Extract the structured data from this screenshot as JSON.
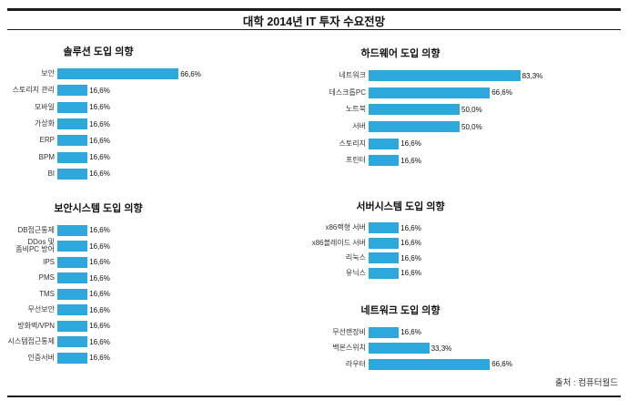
{
  "page": {
    "title": "대학 2014년 IT 투자 수요전망",
    "source": "출처 : 컴퓨터월드",
    "bar_color": "#2ca8dc",
    "unit": "%"
  },
  "chart_data": [
    {
      "type": "bar",
      "orientation": "horizontal",
      "title": "솔루션 도입 의향",
      "categories": [
        "보안",
        "스토리지 관리",
        "모바일",
        "가상화",
        "ERP",
        "BPM",
        "BI"
      ],
      "values": [
        66.6,
        16.6,
        16.6,
        16.6,
        16.6,
        16.6,
        16.6
      ],
      "value_labels": [
        "66,6%",
        "16,6%",
        "16,6%",
        "16,6%",
        "16,6%",
        "16,6%",
        "16,6%"
      ],
      "xlim": [
        0,
        100
      ],
      "grid": false,
      "legend": false
    },
    {
      "type": "bar",
      "orientation": "horizontal",
      "title": "하드웨어 도입 의향",
      "categories": [
        "네트워크",
        "데스크톱PC",
        "노트북",
        "서버",
        "스토리지",
        "프린터"
      ],
      "values": [
        83.3,
        66.6,
        50.0,
        50.0,
        16.6,
        16.6
      ],
      "value_labels": [
        "83,3%",
        "66,6%",
        "50,0%",
        "50,0%",
        "16,6%",
        "16,6%"
      ],
      "xlim": [
        0,
        100
      ],
      "grid": false,
      "legend": false
    },
    {
      "type": "bar",
      "orientation": "horizontal",
      "title": "보안시스템 도입 의향",
      "categories": [
        "DB접근통제",
        "DDos 및\n좀비PC 방어",
        "IPS",
        "PMS",
        "TMS",
        "무선보안",
        "방화벽/VPN",
        "시스템접근통제",
        "인증서버"
      ],
      "values": [
        16.6,
        16.6,
        16.6,
        16.6,
        16.6,
        16.6,
        16.6,
        16.6,
        16.6
      ],
      "value_labels": [
        "16,6%",
        "16,6%",
        "16,6%",
        "16,6%",
        "16,6%",
        "16,6%",
        "16,6%",
        "16,6%",
        "16,6%"
      ],
      "xlim": [
        0,
        100
      ],
      "grid": false,
      "legend": false
    },
    {
      "type": "bar",
      "orientation": "horizontal",
      "title": "서버시스템 도입 의향",
      "categories": [
        "x86랙형 서버",
        "x86블레이드 서버",
        "리눅스",
        "유닉스"
      ],
      "values": [
        16.6,
        16.6,
        16.6,
        16.6
      ],
      "value_labels": [
        "16,6%",
        "16,6%",
        "16,6%",
        "16,6%"
      ],
      "xlim": [
        0,
        100
      ],
      "grid": false,
      "legend": false
    },
    {
      "type": "bar",
      "orientation": "horizontal",
      "title": "네트워크 도입 의향",
      "categories": [
        "무선랜장비",
        "백본스위치",
        "라우터"
      ],
      "values": [
        16.6,
        33.3,
        66.6
      ],
      "value_labels": [
        "16,6%",
        "33,3%",
        "66,6%"
      ],
      "xlim": [
        0,
        100
      ],
      "grid": false,
      "legend": false
    }
  ]
}
